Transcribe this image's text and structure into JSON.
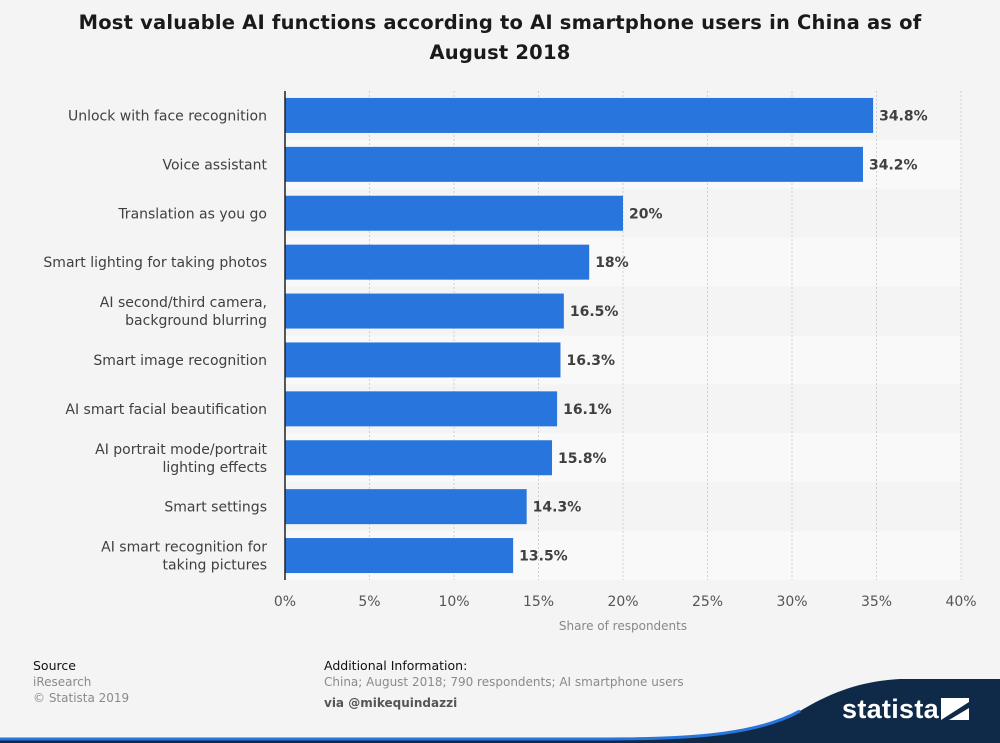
{
  "title": {
    "line1": "Most valuable AI functions according to AI smartphone users in China as of",
    "line2": "August 2018"
  },
  "chart_data": {
    "type": "bar",
    "orientation": "horizontal",
    "title": "Most valuable AI functions according to AI smartphone users in China as of August 2018",
    "categories": [
      [
        "Unlock with face recognition"
      ],
      [
        "Voice assistant"
      ],
      [
        "Translation as you go"
      ],
      [
        "Smart lighting for taking photos"
      ],
      [
        "AI second/third camera,",
        "background blurring"
      ],
      [
        "Smart image recognition"
      ],
      [
        "AI smart facial beautification"
      ],
      [
        "AI portrait mode/portrait",
        "lighting effects"
      ],
      [
        "Smart settings"
      ],
      [
        "AI smart recognition for",
        "taking pictures"
      ]
    ],
    "values": [
      34.8,
      34.2,
      20,
      18,
      16.5,
      16.3,
      16.1,
      15.8,
      14.3,
      13.5
    ],
    "value_labels": [
      "34.8%",
      "34.2%",
      "20%",
      "18%",
      "16.5%",
      "16.3%",
      "16.1%",
      "15.8%",
      "14.3%",
      "13.5%"
    ],
    "xlim": [
      0,
      40
    ],
    "xticks": [
      0,
      5,
      10,
      15,
      20,
      25,
      30,
      35,
      40
    ],
    "xtick_labels": [
      "0%",
      "5%",
      "10%",
      "15%",
      "20%",
      "25%",
      "30%",
      "35%",
      "40%"
    ],
    "xlabel": "Share of respondents",
    "ylabel": "",
    "bar_color": "#2876dd",
    "grid": true
  },
  "footer": {
    "source_title": "Source",
    "source_line1": "iResearch",
    "source_line2": "© Statista 2019",
    "info_title": "Additional Information:",
    "info_text": "China; August 2018; 790 respondents; AI smartphone users",
    "via": "via @mikequindazzi"
  },
  "brand": {
    "name": "statista",
    "color": "#0f2a48",
    "accent": "#2876dd"
  }
}
